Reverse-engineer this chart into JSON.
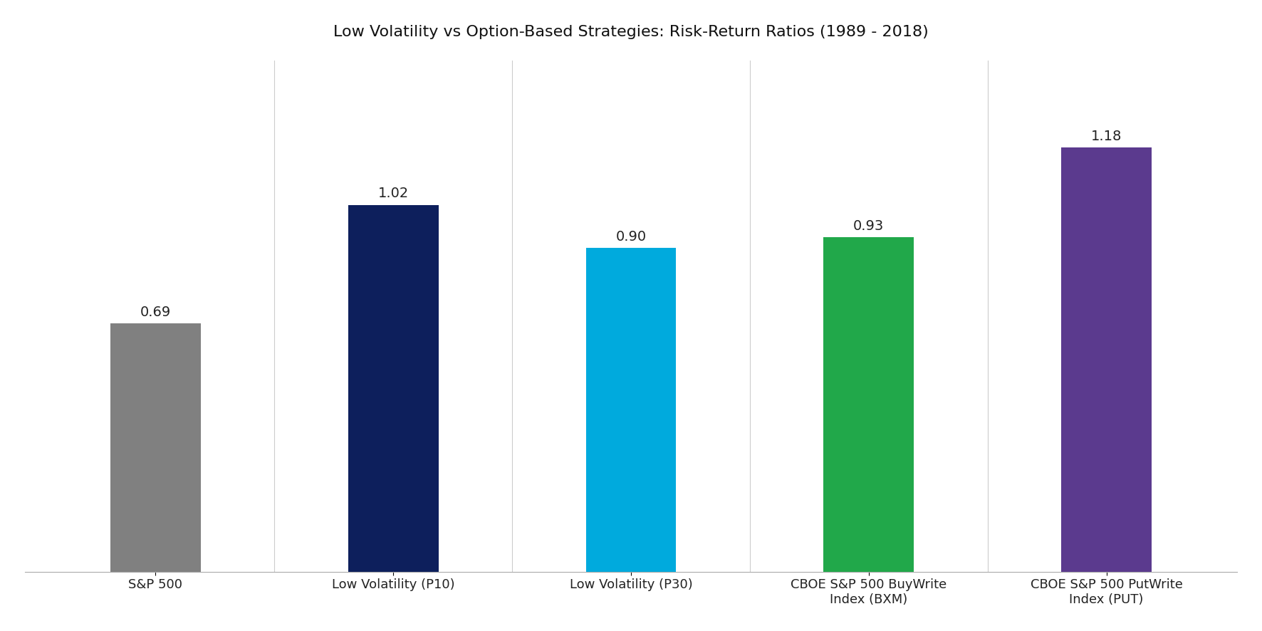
{
  "title": "Low Volatility vs Option-Based Strategies: Risk-Return Ratios (1989 - 2018)",
  "categories": [
    "S&P 500",
    "Low Volatility (P10)",
    "Low Volatility (P30)",
    "CBOE S&P 500 BuyWrite\nIndex (BXM)",
    "CBOE S&P 500 PutWrite\nIndex (PUT)"
  ],
  "values": [
    0.69,
    1.02,
    0.9,
    0.93,
    1.18
  ],
  "bar_colors": [
    "#808080",
    "#0d1f5c",
    "#00aadd",
    "#21a84a",
    "#5b3a8e"
  ],
  "value_labels": [
    "0.69",
    "1.02",
    "0.90",
    "0.93",
    "1.18"
  ],
  "ylim": [
    0,
    1.42
  ],
  "title_fontsize": 16,
  "tick_fontsize": 13,
  "value_label_fontsize": 14,
  "bar_width": 0.38,
  "background_color": "#ffffff"
}
